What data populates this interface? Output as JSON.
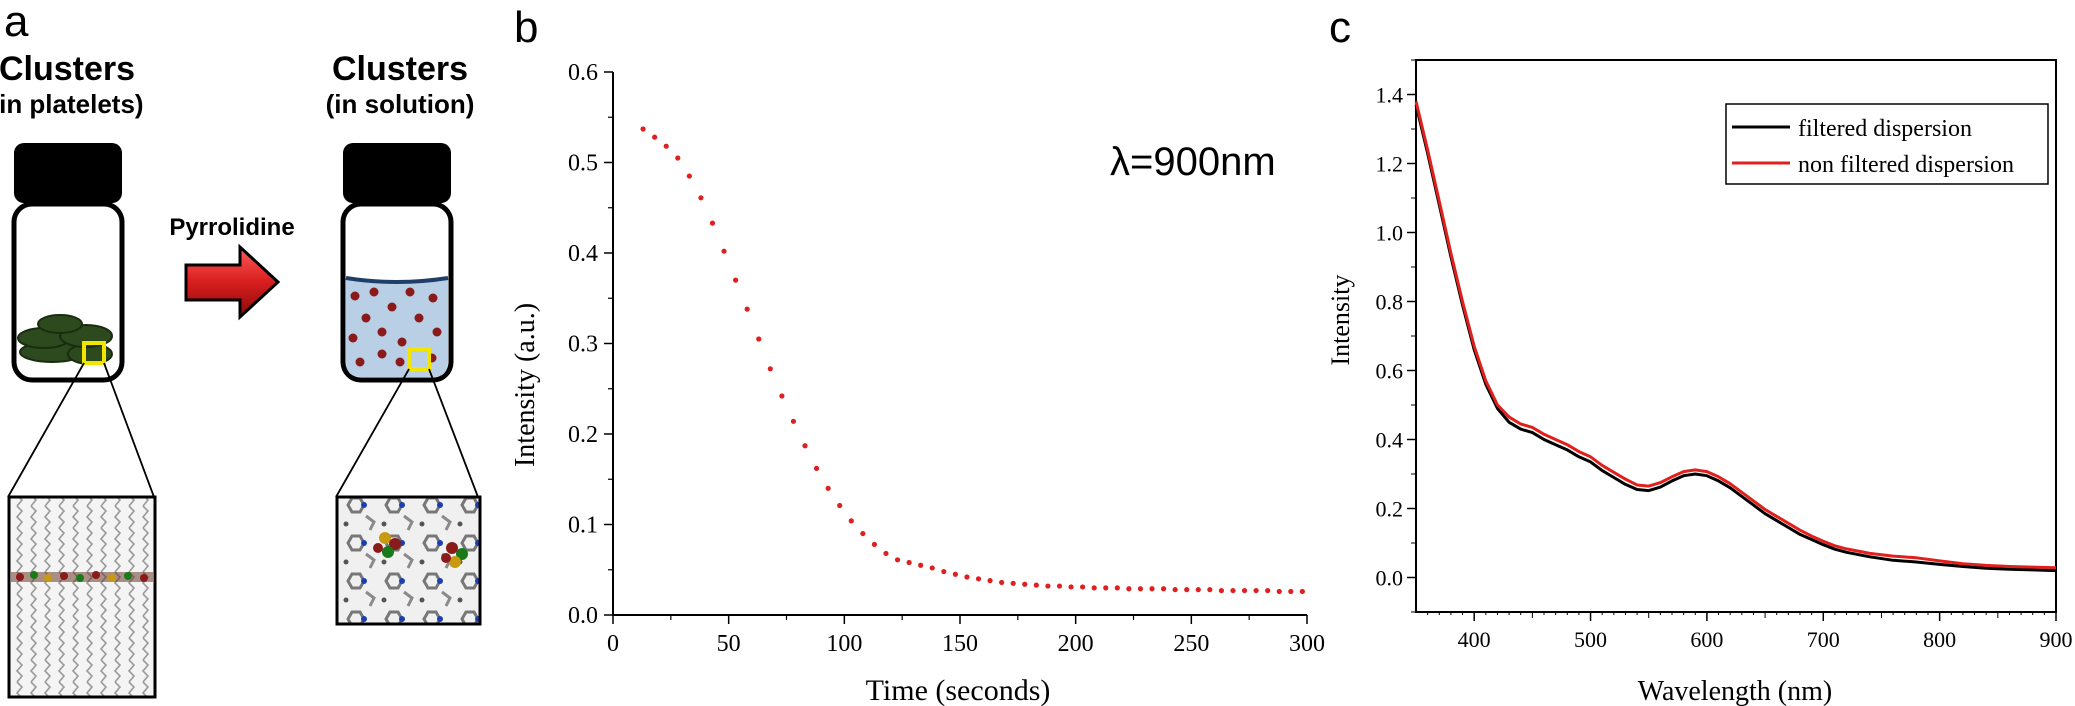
{
  "panel_a": {
    "label": "a",
    "left_title": "Clusters",
    "left_subtitle": "(in platelets)",
    "right_title": "Clusters",
    "right_subtitle": "(in solution)",
    "arrow_label": "Pyrrolidine",
    "colors": {
      "cap": "#000000",
      "platelet": "#2d4a1e",
      "solution": "#b9cfe6",
      "dot": "#8b1a1a",
      "highlight": "#f2e600",
      "arrow": "#d81e1e"
    }
  },
  "chart_data": [
    {
      "panel_label": "b",
      "type": "scatter",
      "title": "",
      "annotation": "λ=900nm",
      "xlabel": "Time (seconds)",
      "ylabel": "Intensity (a.u.)",
      "xlim": [
        0,
        300
      ],
      "ylim": [
        0,
        0.6
      ],
      "x_ticks": [
        "0",
        "50",
        "100",
        "150",
        "200",
        "250",
        "300"
      ],
      "y_ticks": [
        "0.0",
        "0.1",
        "0.2",
        "0.3",
        "0.4",
        "0.5",
        "0.6"
      ],
      "color": "#e02020",
      "series": [
        {
          "x": [
            13,
            18,
            23,
            28,
            33,
            38,
            43,
            48,
            53,
            58,
            63,
            68,
            73,
            78,
            83,
            88,
            93,
            98,
            103,
            108,
            113,
            118,
            123,
            128,
            133,
            138,
            143,
            148,
            153,
            158,
            163,
            168,
            173,
            178,
            183,
            188,
            193,
            198,
            203,
            208,
            213,
            218,
            223,
            228,
            233,
            238,
            243,
            248,
            253,
            258,
            263,
            268,
            273,
            278,
            283,
            288,
            293,
            298
          ],
          "y": [
            0.537,
            0.528,
            0.518,
            0.505,
            0.485,
            0.461,
            0.433,
            0.402,
            0.37,
            0.338,
            0.305,
            0.272,
            0.242,
            0.214,
            0.187,
            0.162,
            0.14,
            0.121,
            0.104,
            0.09,
            0.078,
            0.068,
            0.061,
            0.058,
            0.055,
            0.052,
            0.048,
            0.045,
            0.042,
            0.04,
            0.038,
            0.036,
            0.035,
            0.034,
            0.033,
            0.032,
            0.032,
            0.031,
            0.031,
            0.03,
            0.03,
            0.03,
            0.029,
            0.029,
            0.029,
            0.029,
            0.028,
            0.028,
            0.028,
            0.028,
            0.027,
            0.027,
            0.027,
            0.027,
            0.027,
            0.026,
            0.026,
            0.026
          ]
        }
      ]
    },
    {
      "panel_label": "c",
      "type": "line",
      "title": "",
      "xlabel": "Wavelength (nm)",
      "ylabel": "Intensity",
      "xlim": [
        350,
        900
      ],
      "ylim": [
        -0.1,
        1.5
      ],
      "x_ticks": [
        "400",
        "500",
        "600",
        "700",
        "800",
        "900"
      ],
      "y_ticks": [
        "0.0",
        "0.2",
        "0.4",
        "0.6",
        "0.8",
        "1.0",
        "1.2",
        "1.4"
      ],
      "legend": "top-right",
      "x": [
        350,
        360,
        370,
        380,
        390,
        400,
        410,
        420,
        430,
        440,
        450,
        460,
        470,
        480,
        490,
        500,
        510,
        520,
        530,
        540,
        550,
        560,
        570,
        580,
        590,
        600,
        610,
        620,
        630,
        640,
        650,
        660,
        670,
        680,
        690,
        700,
        710,
        720,
        740,
        760,
        780,
        800,
        820,
        840,
        860,
        880,
        900
      ],
      "series": [
        {
          "name": "filtered dispersion",
          "color": "#000000",
          "values": [
            1.37,
            1.23,
            1.08,
            0.93,
            0.79,
            0.66,
            0.56,
            0.49,
            0.45,
            0.43,
            0.42,
            0.4,
            0.385,
            0.37,
            0.35,
            0.335,
            0.31,
            0.29,
            0.27,
            0.255,
            0.252,
            0.262,
            0.28,
            0.295,
            0.3,
            0.295,
            0.28,
            0.26,
            0.235,
            0.21,
            0.185,
            0.165,
            0.145,
            0.125,
            0.11,
            0.095,
            0.082,
            0.073,
            0.06,
            0.05,
            0.045,
            0.038,
            0.032,
            0.027,
            0.024,
            0.022,
            0.02
          ]
        },
        {
          "name": "non filtered dispersion",
          "color": "#e0201c",
          "values": [
            1.38,
            1.24,
            1.09,
            0.94,
            0.8,
            0.67,
            0.57,
            0.5,
            0.465,
            0.445,
            0.435,
            0.415,
            0.4,
            0.385,
            0.365,
            0.35,
            0.325,
            0.305,
            0.285,
            0.268,
            0.265,
            0.275,
            0.292,
            0.307,
            0.312,
            0.307,
            0.292,
            0.272,
            0.247,
            0.222,
            0.197,
            0.177,
            0.157,
            0.137,
            0.12,
            0.105,
            0.092,
            0.083,
            0.07,
            0.062,
            0.057,
            0.048,
            0.04,
            0.035,
            0.032,
            0.03,
            0.028
          ]
        }
      ]
    }
  ]
}
